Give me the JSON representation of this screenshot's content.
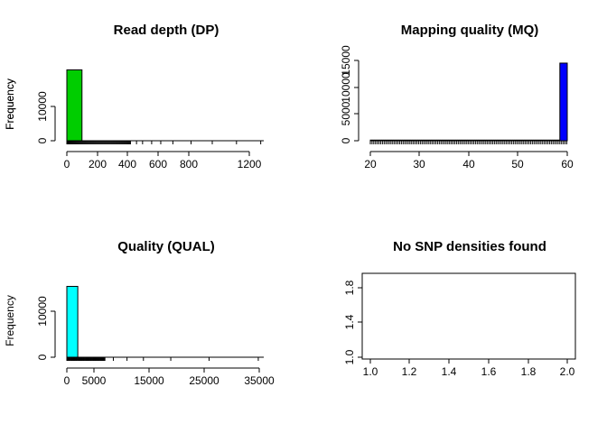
{
  "chart_data": [
    {
      "type": "bar",
      "title": "Read depth (DP)",
      "xlabel": "",
      "ylabel": "Frequency",
      "x_ticks": [
        "0",
        "200",
        "400",
        "600",
        "800",
        "1200"
      ],
      "y_ticks": [
        "0",
        "10000"
      ],
      "xlim": [
        0,
        1300
      ],
      "ylim": [
        0,
        17000
      ],
      "bins": [
        {
          "x0": 0,
          "x1": 100,
          "count": 15000
        }
      ],
      "bar_color": "#00cd00",
      "rug": true
    },
    {
      "type": "bar",
      "title": "Mapping quality (MQ)",
      "xlabel": "",
      "ylabel": "Frequency",
      "x_ticks": [
        "20",
        "30",
        "40",
        "50",
        "60"
      ],
      "y_ticks": [
        "0",
        "5000",
        "10000",
        "15000"
      ],
      "xlim": [
        20,
        60
      ],
      "ylim": [
        0,
        15000
      ],
      "bins": [
        {
          "x0": 20,
          "x1": 58.5,
          "count": 120
        },
        {
          "x0": 58.5,
          "x1": 60,
          "count": 14500
        }
      ],
      "bar_color": "#0000ff",
      "rug": true
    },
    {
      "type": "bar",
      "title": "Quality (QUAL)",
      "xlabel": "",
      "ylabel": "Frequency",
      "x_ticks": [
        "0",
        "5000",
        "15000",
        "25000",
        "35000"
      ],
      "y_ticks": [
        "0",
        "10000"
      ],
      "xlim": [
        0,
        36000
      ],
      "ylim": [
        0,
        17000
      ],
      "bins": [
        {
          "x0": 0,
          "x1": 2000,
          "count": 15000
        }
      ],
      "bar_color": "#00ffff",
      "rug": true
    },
    {
      "type": "scatter",
      "title": "No SNP densities found",
      "xlabel": "",
      "ylabel": "",
      "x_ticks": [
        "1.0",
        "1.2",
        "1.4",
        "1.6",
        "1.8",
        "2.0"
      ],
      "y_ticks": [
        "1.0",
        "1.4",
        "1.8"
      ],
      "xlim": [
        1.0,
        2.0
      ],
      "ylim": [
        1.0,
        2.0
      ],
      "points": []
    }
  ]
}
